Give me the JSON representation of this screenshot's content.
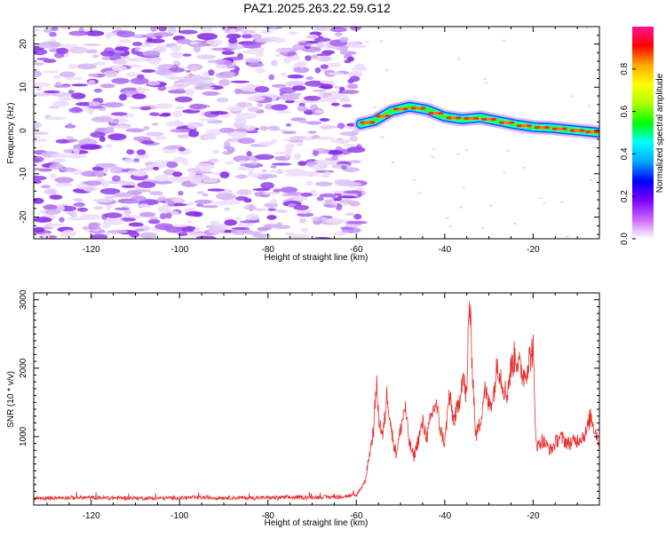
{
  "title": "PAZ1.2025.263.22.59.G12",
  "colors": {
    "axis": "#000000",
    "snr_line": "#e8302e",
    "noise_purple": "#8a2be2",
    "noise_light": "#d9b8f5"
  },
  "chart_data": [
    {
      "type": "heatmap",
      "name": "spectrogram",
      "xlabel": "Height of straight line (km)",
      "ylabel": "Frequency (Hz)",
      "xlim": [
        -133,
        -5
      ],
      "ylim": [
        -25,
        24
      ],
      "xticks": [
        -120,
        -100,
        -80,
        -60,
        -40,
        -20
      ],
      "yticks": [
        -20,
        -10,
        0,
        10,
        20
      ],
      "x_tick_labels": [
        "-120",
        "-100",
        "-80",
        "-60",
        "-40",
        "-20"
      ],
      "y_tick_labels": [
        "-20",
        "-10",
        "0",
        "10",
        "20"
      ],
      "noise_region_x": [
        -133,
        -59
      ],
      "signal_track": {
        "x": [
          -59,
          -56,
          -52,
          -48,
          -44,
          -40,
          -36,
          -32,
          -28,
          -24,
          -20,
          -16,
          -12,
          -8,
          -5
        ],
        "freq": [
          1.5,
          2.2,
          4.5,
          5.5,
          4.8,
          3.2,
          2.6,
          3.0,
          2.2,
          1.4,
          0.8,
          0.6,
          0.2,
          -0.2,
          -0.5
        ]
      }
    },
    {
      "type": "colorbar",
      "name": "colorbar",
      "label": "Normalized spectral amplitude",
      "range": [
        0.0,
        1.0
      ],
      "ticks": [
        0.0,
        0.2,
        0.4,
        0.6,
        0.8
      ],
      "tick_labels": [
        "0.0",
        "0.2",
        "0.4",
        "0.6",
        "0.8"
      ],
      "colormap": [
        "#ffffff",
        "#cc66ff",
        "#7a00ff",
        "#0000ff",
        "#00aaff",
        "#00ffff",
        "#00ff00",
        "#aaff00",
        "#ffff00",
        "#ffaa00",
        "#ff0000",
        "#ff1493"
      ]
    },
    {
      "type": "line",
      "name": "snr",
      "xlabel": "Height of straight line (km)",
      "ylabel": "SNR (10 * v/v)",
      "xlim": [
        -133,
        -5
      ],
      "ylim": [
        0,
        3100
      ],
      "xticks": [
        -120,
        -100,
        -80,
        -60,
        -40,
        -20
      ],
      "yticks": [
        1000,
        2000,
        3000
      ],
      "x_tick_labels": [
        "-120",
        "-100",
        "-80",
        "-60",
        "-40",
        "-20"
      ],
      "y_tick_labels": [
        "1000",
        "2000",
        "3000"
      ],
      "series": [
        {
          "name": "SNR",
          "x": [
            -133,
            -125,
            -115,
            -105,
            -95,
            -85,
            -75,
            -65,
            -60,
            -58,
            -57,
            -56,
            -55.5,
            -55,
            -54,
            -53,
            -52,
            -51,
            -50,
            -49,
            -48,
            -47,
            -46,
            -45,
            -44,
            -43,
            -42,
            -41,
            -40,
            -39,
            -38,
            -37,
            -36,
            -35,
            -34.5,
            -34,
            -33,
            -32,
            -31,
            -30,
            -29,
            -28,
            -27,
            -26,
            -25,
            -24,
            -23,
            -22,
            -21,
            -20,
            -19.5,
            -19,
            -18,
            -16,
            -14,
            -12,
            -10,
            -8,
            -7,
            -6,
            -5
          ],
          "y": [
            100,
            110,
            105,
            100,
            110,
            105,
            110,
            120,
            140,
            350,
            750,
            1150,
            1850,
            1300,
            1000,
            1650,
            1050,
            750,
            1100,
            1450,
            900,
            700,
            950,
            1200,
            1000,
            1300,
            1500,
            1100,
            900,
            1600,
            1250,
            1400,
            1900,
            1550,
            3050,
            2400,
            1000,
            1200,
            1700,
            1450,
            1600,
            2100,
            1800,
            1600,
            2000,
            2200,
            2000,
            1900,
            2100,
            2300,
            1100,
            850,
            950,
            800,
            1000,
            900,
            950,
            1050,
            1300,
            1100,
            900
          ]
        }
      ]
    }
  ]
}
